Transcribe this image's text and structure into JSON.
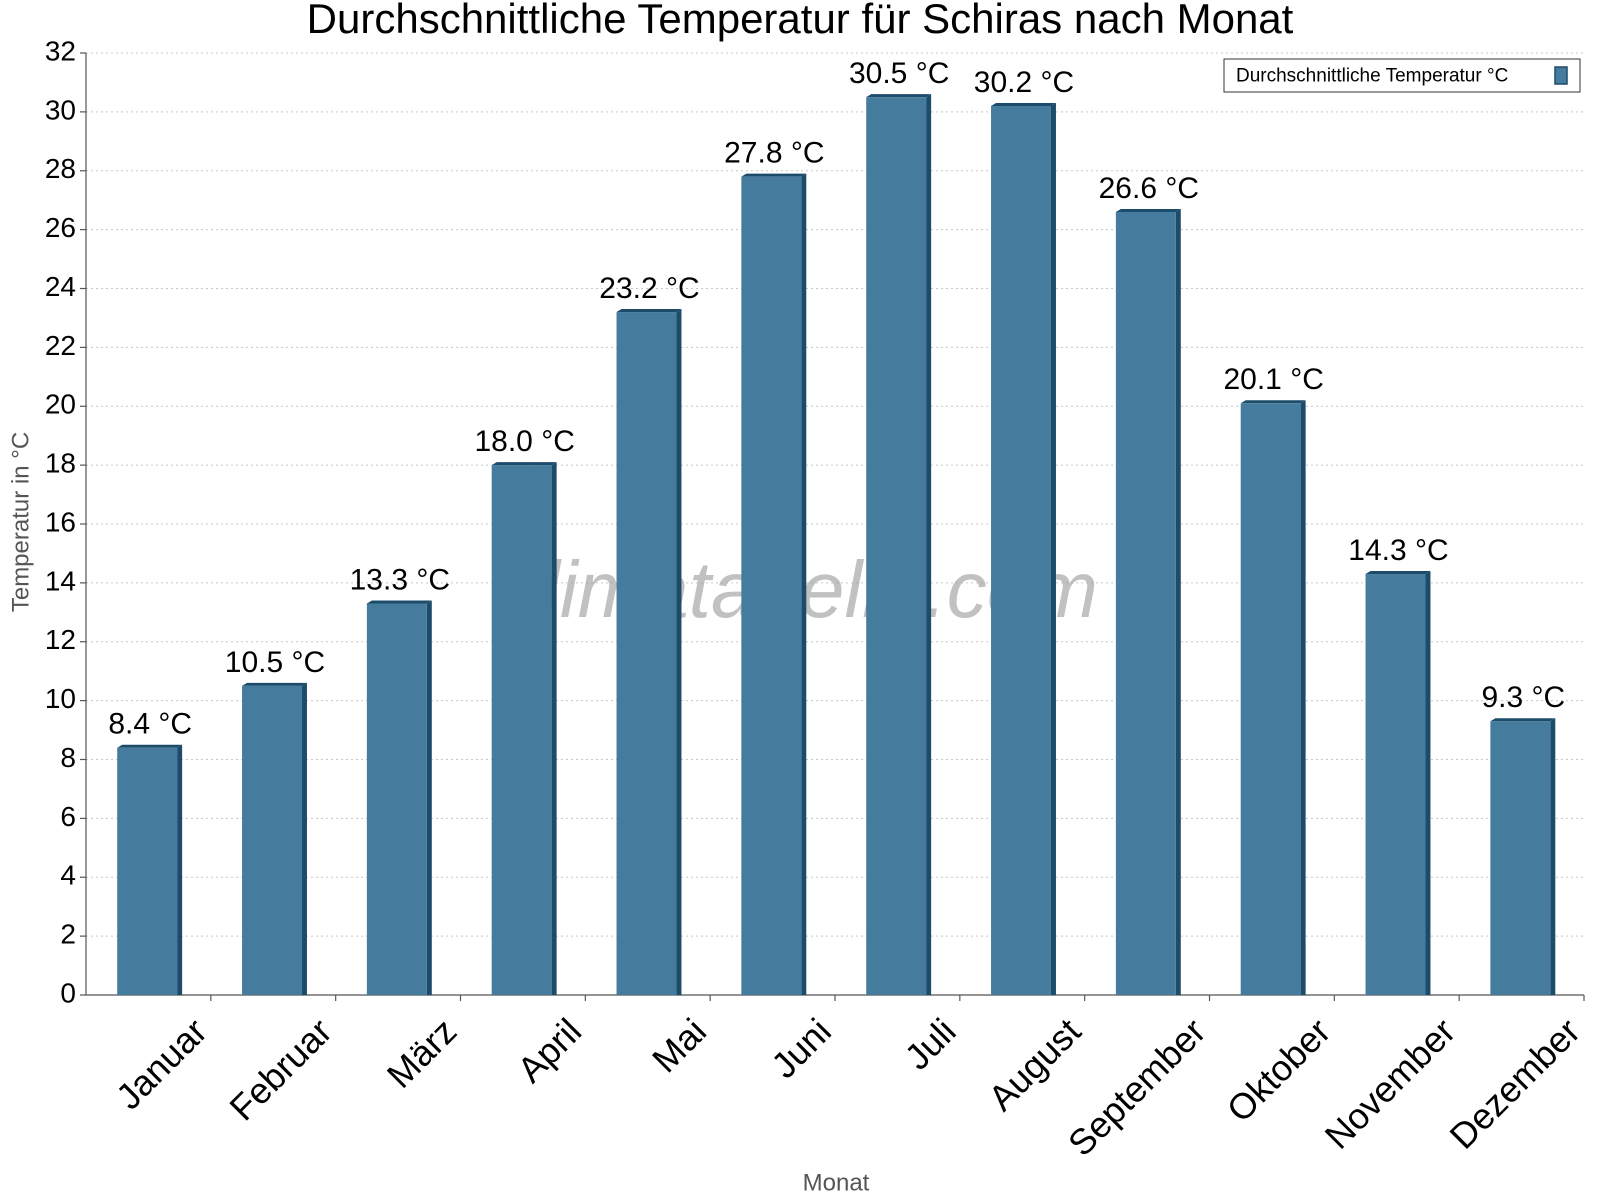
{
  "chart_data": {
    "type": "bar",
    "title": "Durchschnittliche Temperatur für Schiras nach Monat",
    "x_label": "Monat",
    "y_label": "Temperatur in °C",
    "watermark": "klimatabelle.com",
    "categories": [
      "Januar",
      "Februar",
      "März",
      "April",
      "Mai",
      "Juni",
      "Juli",
      "August",
      "September",
      "Oktober",
      "November",
      "Dezember"
    ],
    "series": [
      {
        "name": "Durchschnittliche Temperatur °C",
        "color": "#457b9d",
        "values": [
          8.4,
          10.5,
          13.3,
          18.0,
          23.2,
          27.8,
          30.5,
          30.2,
          26.6,
          20.1,
          14.3,
          9.3
        ],
        "value_labels": [
          "8.4 °C",
          "10.5 °C",
          "13.3 °C",
          "18.0 °C",
          "23.2 °C",
          "27.8 °C",
          "30.5 °C",
          "30.2 °C",
          "26.6 °C",
          "20.1 °C",
          "14.3 °C",
          "9.3 °C"
        ]
      }
    ],
    "ylim": [
      0,
      32
    ],
    "yticks": [
      0,
      2,
      4,
      6,
      8,
      10,
      12,
      14,
      16,
      18,
      20,
      22,
      24,
      26,
      28,
      30,
      32
    ],
    "grid": true,
    "legend": "top-right"
  }
}
